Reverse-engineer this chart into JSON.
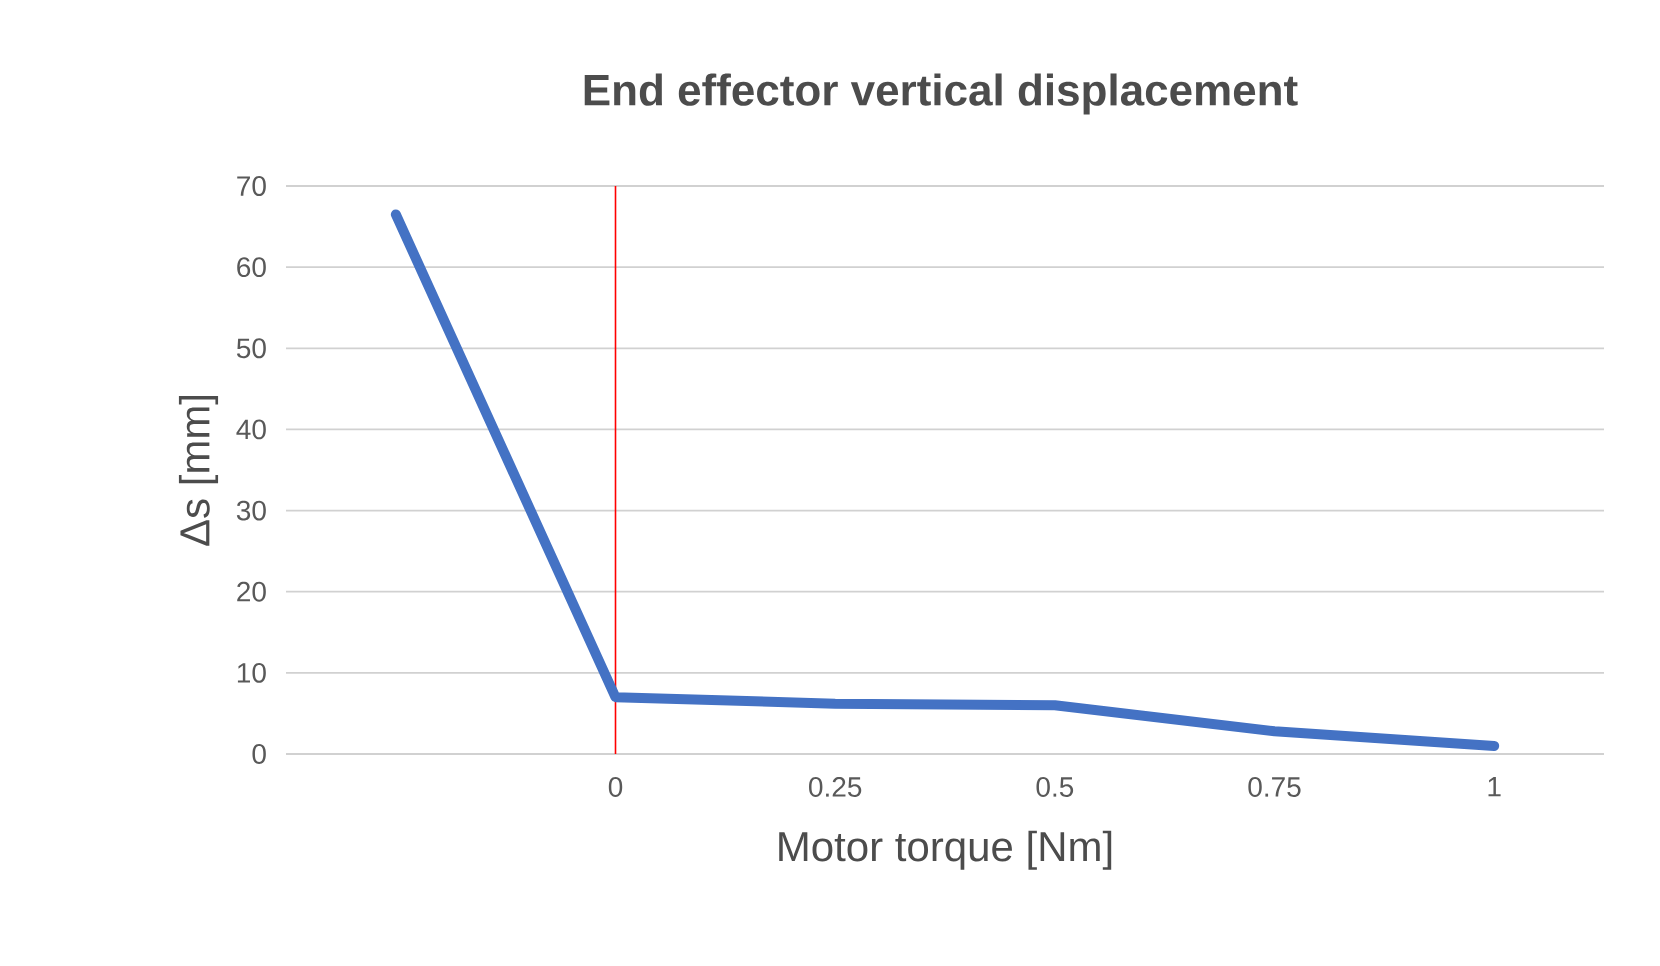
{
  "chart_data": {
    "type": "line",
    "title": "End effector vertical displacement",
    "xlabel": "Motor torque [Nm]",
    "ylabel": "Δs [mm]",
    "x": [
      -0.25,
      0,
      0.25,
      0.5,
      0.75,
      1
    ],
    "series": [
      {
        "color": "#4472c4",
        "values": [
          66.5,
          7,
          6.2,
          6,
          2.8,
          1
        ]
      }
    ],
    "xlim": [
      -0.375,
      1.125
    ],
    "xticks": [
      0,
      0.25,
      0.5,
      0.75,
      1
    ],
    "ylim": [
      0,
      70
    ],
    "yticks": [
      0,
      10,
      20,
      30,
      40,
      50,
      60,
      70
    ],
    "ref_lines": [
      {
        "axis": "x",
        "value": 0,
        "color": "#ff0000"
      }
    ],
    "grid": "y",
    "marker": "none",
    "line_style": "solid"
  }
}
